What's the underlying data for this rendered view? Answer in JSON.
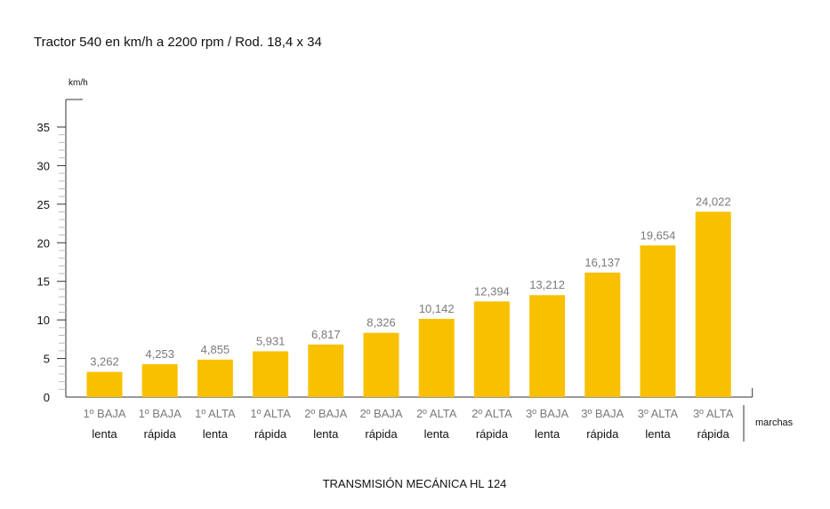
{
  "chart_data": {
    "type": "bar",
    "title": "Tractor 540 en km/h a 2200 rpm / Rod. 18,4 x 34",
    "ylabel": "km/h",
    "xlabel": "marchas",
    "caption": "TRANSMISIÓN MECÁNICA HL 124",
    "ylim": [
      0,
      35
    ],
    "yticks": [
      "0",
      "5",
      "10",
      "15",
      "20",
      "25",
      "30",
      "35"
    ],
    "categories": [
      {
        "line1": "1º BAJA",
        "line2": "lenta"
      },
      {
        "line1": "1º BAJA",
        "line2": "rápida"
      },
      {
        "line1": "1º ALTA",
        "line2": "lenta"
      },
      {
        "line1": "1º ALTA",
        "line2": "rápida"
      },
      {
        "line1": "2º BAJA",
        "line2": "lenta"
      },
      {
        "line1": "2º BAJA",
        "line2": "rápida"
      },
      {
        "line1": "2º ALTA",
        "line2": "lenta"
      },
      {
        "line1": "2º ALTA",
        "line2": "rápida"
      },
      {
        "line1": "3º BAJA",
        "line2": "lenta"
      },
      {
        "line1": "3º BAJA",
        "line2": "rápida"
      },
      {
        "line1": "3º ALTA",
        "line2": "lenta"
      },
      {
        "line1": "3º ALTA",
        "line2": "rápida"
      }
    ],
    "values": [
      3.262,
      4.253,
      4.855,
      5.931,
      6.817,
      8.326,
      10.142,
      12.394,
      13.212,
      16.137,
      19.654,
      24.022
    ],
    "value_labels": [
      "3,262",
      "4,253",
      "4,855",
      "5,931",
      "6,817",
      "8,326",
      "10,142",
      "12,394",
      "13,212",
      "16,137",
      "19,654",
      "24,022"
    ],
    "bar_color": "#F9C000",
    "axis_color": "#333333",
    "grid": false
  }
}
